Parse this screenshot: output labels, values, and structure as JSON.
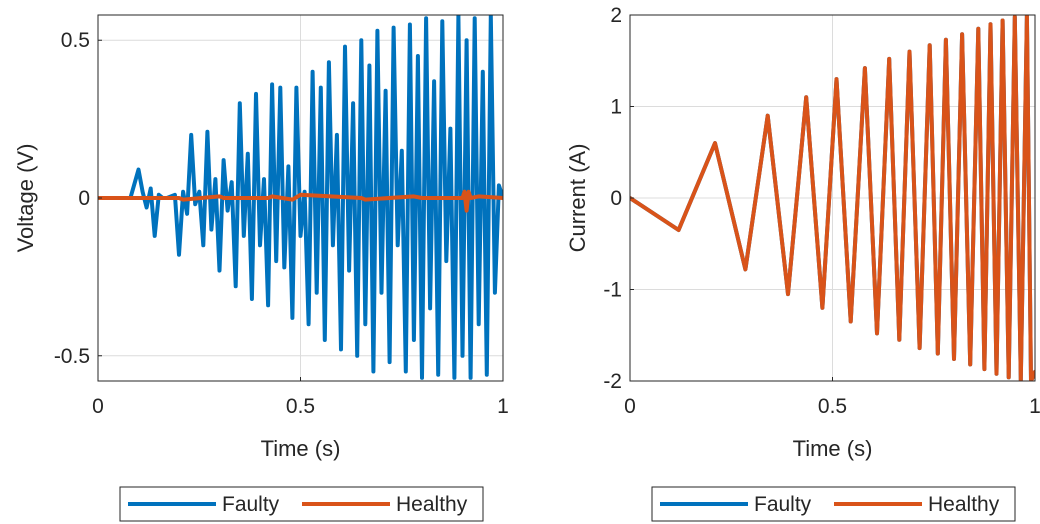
{
  "colors": {
    "faulty": "#0072BD",
    "healthy": "#D95319",
    "axis": "#262626",
    "grid": "#DCDCDC"
  },
  "chart_data": [
    {
      "type": "line",
      "xlabel": "Time (s)",
      "ylabel": "Voltage (V)",
      "xlim": [
        0,
        1
      ],
      "ylim": [
        -0.58,
        0.58
      ],
      "xticks": [
        0,
        0.5,
        1
      ],
      "xtick_labels": [
        "0",
        "0.5",
        "1"
      ],
      "yticks": [
        -0.5,
        0,
        0.5
      ],
      "ytick_labels": [
        "-0.5",
        "0",
        "0.5"
      ],
      "grid": true,
      "legend": {
        "position": "bottom-outside",
        "orientation": "horizontal",
        "entries": [
          "Faulty",
          "Healthy"
        ]
      },
      "series": [
        {
          "name": "Faulty",
          "x": [
            0,
            0.08,
            0.1,
            0.11,
            0.12,
            0.13,
            0.14,
            0.15,
            0.16,
            0.17,
            0.19,
            0.2,
            0.21,
            0.22,
            0.23,
            0.24,
            0.25,
            0.26,
            0.27,
            0.28,
            0.29,
            0.3,
            0.31,
            0.32,
            0.33,
            0.34,
            0.35,
            0.36,
            0.37,
            0.38,
            0.39,
            0.4,
            0.41,
            0.42,
            0.43,
            0.44,
            0.45,
            0.46,
            0.47,
            0.48,
            0.49,
            0.5,
            0.51,
            0.52,
            0.53,
            0.54,
            0.55,
            0.56,
            0.57,
            0.58,
            0.59,
            0.6,
            0.61,
            0.62,
            0.63,
            0.64,
            0.65,
            0.66,
            0.67,
            0.68,
            0.69,
            0.7,
            0.71,
            0.72,
            0.73,
            0.74,
            0.75,
            0.76,
            0.77,
            0.78,
            0.79,
            0.8,
            0.81,
            0.82,
            0.83,
            0.84,
            0.85,
            0.86,
            0.87,
            0.88,
            0.89,
            0.9,
            0.91,
            0.92,
            0.93,
            0.94,
            0.95,
            0.96,
            0.97,
            0.98,
            0.99,
            1.0
          ],
          "y": [
            0,
            0,
            0.09,
            0.02,
            -0.03,
            0.03,
            -0.12,
            0.01,
            0,
            0,
            0.01,
            -0.18,
            0.02,
            -0.05,
            0.2,
            -0.02,
            0.02,
            -0.15,
            0.21,
            -0.1,
            0.06,
            -0.23,
            0.12,
            -0.04,
            0.05,
            -0.28,
            0.3,
            -0.12,
            0.14,
            -0.32,
            0.33,
            -0.15,
            0.06,
            -0.34,
            0.36,
            -0.2,
            0.35,
            -0.22,
            0.1,
            -0.38,
            0.35,
            -0.12,
            0.02,
            -0.4,
            0.4,
            -0.3,
            0.35,
            -0.45,
            0.43,
            -0.15,
            0.2,
            -0.48,
            0.48,
            -0.23,
            0.3,
            -0.5,
            0.5,
            -0.4,
            0.42,
            -0.55,
            0.53,
            -0.3,
            0.34,
            -0.52,
            0.54,
            -0.15,
            0.15,
            -0.55,
            0.55,
            -0.45,
            0.45,
            -0.57,
            0.57,
            -0.35,
            0.37,
            -0.56,
            0.56,
            -0.2,
            0.22,
            -0.57,
            0.58,
            -0.5,
            0.5,
            -0.57,
            0.57,
            -0.4,
            0.4,
            -0.56,
            0.58,
            -0.3,
            0.04,
            0
          ]
        },
        {
          "name": "Healthy",
          "x": [
            0,
            0.2,
            0.21,
            0.3,
            0.31,
            0.42,
            0.43,
            0.48,
            0.5,
            0.65,
            0.66,
            0.78,
            0.8,
            0.9,
            0.905,
            0.91,
            0.915,
            0.92,
            0.94,
            1.0
          ],
          "y": [
            0,
            0,
            -0.005,
            0.005,
            0,
            0,
            0.005,
            -0.005,
            0.01,
            0,
            -0.005,
            0.005,
            0,
            0,
            0.02,
            -0.04,
            0.02,
            0,
            0.005,
            0
          ]
        }
      ]
    },
    {
      "type": "line",
      "xlabel": "Time (s)",
      "ylabel": "Current (A)",
      "xlim": [
        0,
        1
      ],
      "ylim": [
        -2,
        2
      ],
      "xticks": [
        0,
        0.5,
        1
      ],
      "xtick_labels": [
        "0",
        "0.5",
        "1"
      ],
      "yticks": [
        -2,
        -1,
        0,
        1,
        2
      ],
      "ytick_labels": [
        "-2",
        "-1",
        "0",
        "1",
        "2"
      ],
      "grid": true,
      "legend": {
        "position": "bottom-outside",
        "orientation": "horizontal",
        "entries": [
          "Faulty",
          "Healthy"
        ]
      },
      "series": [
        {
          "name": "Faulty",
          "x": [
            0,
            0.12,
            0.21,
            0.285,
            0.34,
            0.39,
            0.435,
            0.475,
            0.51,
            0.545,
            0.58,
            0.61,
            0.64,
            0.665,
            0.69,
            0.715,
            0.74,
            0.76,
            0.78,
            0.8,
            0.82,
            0.84,
            0.86,
            0.875,
            0.89,
            0.905,
            0.92,
            0.935,
            0.95,
            0.965,
            0.98,
            0.99,
            1.0
          ],
          "y": [
            0,
            -0.35,
            0.6,
            -0.78,
            0.9,
            -1.05,
            1.1,
            -1.2,
            1.3,
            -1.35,
            1.42,
            -1.48,
            1.52,
            -1.55,
            1.6,
            -1.64,
            1.67,
            -1.7,
            1.73,
            -1.76,
            1.79,
            -1.82,
            1.85,
            -1.87,
            1.9,
            -1.92,
            1.94,
            -1.96,
            1.98,
            -1.99,
            2.0,
            -2.0,
            -1.9
          ]
        },
        {
          "name": "Healthy",
          "x": [
            0,
            0.12,
            0.21,
            0.285,
            0.34,
            0.39,
            0.435,
            0.475,
            0.51,
            0.545,
            0.58,
            0.61,
            0.64,
            0.665,
            0.69,
            0.715,
            0.74,
            0.76,
            0.78,
            0.8,
            0.82,
            0.84,
            0.86,
            0.875,
            0.89,
            0.905,
            0.92,
            0.935,
            0.95,
            0.965,
            0.98,
            0.99,
            1.0
          ],
          "y": [
            0,
            -0.35,
            0.6,
            -0.78,
            0.9,
            -1.05,
            1.1,
            -1.2,
            1.3,
            -1.35,
            1.42,
            -1.48,
            1.52,
            -1.55,
            1.6,
            -1.64,
            1.67,
            -1.7,
            1.73,
            -1.76,
            1.79,
            -1.82,
            1.85,
            -1.87,
            1.9,
            -1.92,
            1.94,
            -1.96,
            1.98,
            -1.99,
            2.0,
            -2.0,
            -1.9
          ]
        }
      ]
    }
  ]
}
